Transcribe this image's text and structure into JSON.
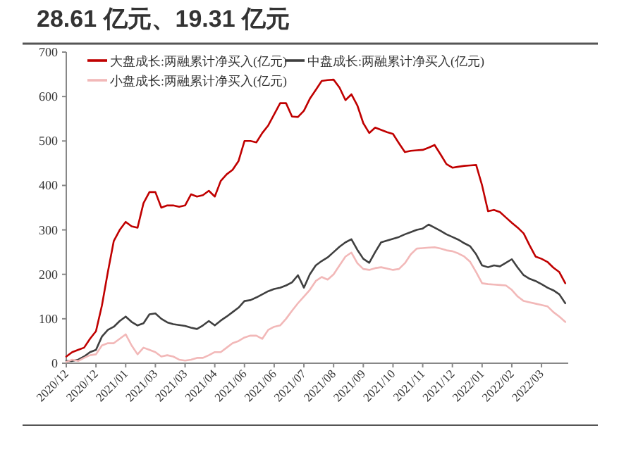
{
  "chart_data": {
    "type": "line",
    "title": "28.61 亿元、19.31 亿元",
    "legend": "top",
    "marker": "none",
    "line_style": "solid",
    "grid": false,
    "ylim": [
      0,
      700
    ],
    "yticks": [
      0,
      100,
      200,
      300,
      400,
      500,
      600,
      700
    ],
    "categories": [
      "2020/12",
      null,
      null,
      null,
      null,
      "2020/12",
      null,
      null,
      null,
      null,
      "2021/01",
      null,
      null,
      null,
      null,
      "2021/03",
      null,
      null,
      null,
      null,
      "2021/03",
      null,
      null,
      null,
      null,
      "2021/04",
      null,
      null,
      null,
      null,
      "2021/06",
      null,
      null,
      null,
      null,
      "2021/06",
      null,
      null,
      null,
      null,
      "2021/07",
      null,
      null,
      null,
      null,
      "2021/08",
      null,
      null,
      null,
      null,
      "2021/09",
      null,
      null,
      null,
      null,
      "2021/10",
      null,
      null,
      null,
      null,
      "2021/11",
      null,
      null,
      null,
      null,
      "2021/12",
      null,
      null,
      null,
      null,
      "2022/01",
      null,
      null,
      null,
      null,
      "2022/02",
      null,
      null,
      null,
      null,
      "2022/03",
      null,
      null,
      null,
      null
    ],
    "series": [
      {
        "name": "大盘成长:两融累计净买入(亿元)",
        "color": "#c00000",
        "values": [
          15,
          25,
          30,
          35,
          55,
          72,
          130,
          205,
          275,
          300,
          318,
          308,
          305,
          360,
          385,
          385,
          350,
          355,
          355,
          352,
          355,
          380,
          375,
          378,
          388,
          375,
          410,
          425,
          435,
          455,
          500,
          500,
          497,
          518,
          535,
          560,
          585,
          585,
          555,
          554,
          568,
          595,
          615,
          635,
          637,
          638,
          620,
          592,
          605,
          580,
          540,
          518,
          530,
          525,
          520,
          516,
          495,
          475,
          478,
          479,
          480,
          485,
          491,
          470,
          448,
          440,
          442,
          444,
          445,
          446,
          400,
          342,
          345,
          340,
          328,
          316,
          305,
          292,
          265,
          240,
          235,
          228,
          215,
          205,
          180
        ]
      },
      {
        "name": "中盘成长:两融累计净买入(亿元)",
        "color": "#404040",
        "values": [
          5,
          5,
          8,
          15,
          25,
          30,
          60,
          75,
          82,
          95,
          105,
          93,
          85,
          90,
          110,
          112,
          100,
          92,
          88,
          86,
          84,
          80,
          77,
          85,
          95,
          85,
          96,
          105,
          115,
          125,
          140,
          142,
          148,
          155,
          162,
          167,
          170,
          175,
          182,
          198,
          170,
          200,
          220,
          230,
          238,
          250,
          262,
          272,
          279,
          255,
          235,
          226,
          250,
          272,
          276,
          280,
          284,
          290,
          295,
          300,
          303,
          312,
          305,
          298,
          290,
          284,
          278,
          270,
          263,
          245,
          220,
          216,
          220,
          218,
          226,
          234,
          215,
          198,
          190,
          185,
          178,
          170,
          164,
          155,
          135
        ]
      },
      {
        "name": "小盘成长:两融累计净买入(亿元)",
        "color": "#f2b8b8",
        "values": [
          3,
          8,
          5,
          12,
          18,
          20,
          40,
          45,
          45,
          55,
          65,
          40,
          20,
          35,
          30,
          25,
          15,
          18,
          15,
          8,
          6,
          8,
          12,
          12,
          18,
          25,
          25,
          35,
          45,
          50,
          58,
          62,
          62,
          55,
          75,
          82,
          85,
          100,
          118,
          135,
          150,
          165,
          185,
          194,
          188,
          200,
          220,
          240,
          249,
          225,
          212,
          210,
          214,
          216,
          213,
          210,
          212,
          225,
          245,
          258,
          259,
          260,
          261,
          258,
          254,
          252,
          247,
          240,
          228,
          205,
          180,
          178,
          177,
          176,
          175,
          165,
          150,
          140,
          137,
          134,
          131,
          128,
          115,
          105,
          93
        ]
      }
    ]
  }
}
